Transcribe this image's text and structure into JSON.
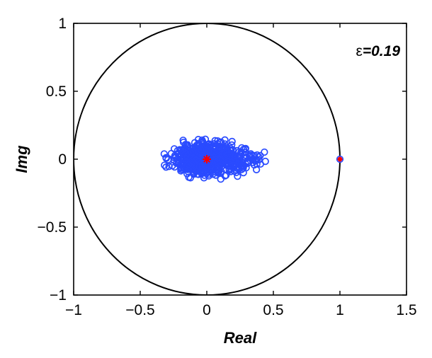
{
  "chart_data": {
    "type": "scatter",
    "title": "",
    "xlabel": "Real",
    "ylabel": "Img",
    "xlim": [
      -1,
      1.5
    ],
    "ylim": [
      -1,
      1
    ],
    "xticks": [
      -1,
      -0.5,
      0,
      0.5,
      1,
      1.5
    ],
    "xtick_labels": [
      "−1",
      "−0.5",
      "0",
      "0.5",
      "1",
      "1.5"
    ],
    "yticks": [
      -1,
      -0.5,
      0,
      0.5,
      1
    ],
    "ytick_labels": [
      "−1",
      "−0.5",
      "0",
      "0.5",
      "1"
    ],
    "grid": false,
    "annotation": {
      "symbol": "ε",
      "text": "=0.19"
    },
    "unit_circle": {
      "center": [
        0,
        0
      ],
      "radius": 1,
      "color": "#000000"
    },
    "series": [
      {
        "marker": "circle-open",
        "color": "#2a4bff",
        "cluster": {
          "center": [
            0.0,
            0.0
          ],
          "x_extent": [
            -0.32,
            0.46
          ],
          "y_extent": [
            -0.17,
            0.18
          ],
          "count": 600
        },
        "points": [
          [
            1.0,
            0.0
          ]
        ]
      },
      {
        "marker": "star",
        "color": "#ff0000",
        "points": [
          [
            0.0,
            0.0
          ],
          [
            1.0,
            0.0
          ]
        ]
      }
    ]
  }
}
